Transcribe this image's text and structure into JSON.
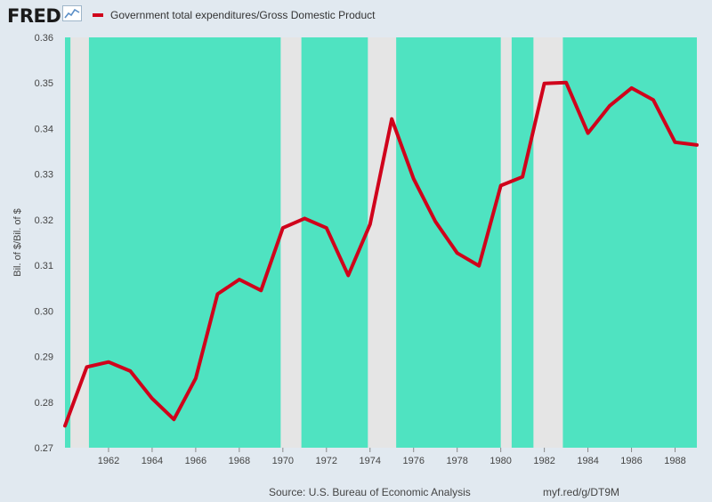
{
  "header": {
    "logo_text": "FRED",
    "logo_icon": "chart-line-icon"
  },
  "legend": {
    "label": "Government total expenditures/Gross Domestic Product",
    "color": "#d0021b"
  },
  "footer": {
    "source": "Source: U.S. Bureau of Economic Analysis",
    "link": "myf.red/g/DT9M"
  },
  "colors": {
    "plot_fill": "#4fe3c1",
    "recession_shading": "#e5e5e5",
    "line": "#d0021b",
    "background": "#e1e9f0"
  },
  "chart_data": {
    "type": "line",
    "title": "",
    "xlabel": "",
    "ylabel": "Bil. of $/Bil. of $",
    "xlim": [
      1960,
      1989
    ],
    "ylim": [
      0.27,
      0.36
    ],
    "x_ticks": [
      1962,
      1964,
      1966,
      1968,
      1970,
      1972,
      1974,
      1976,
      1978,
      1980,
      1982,
      1984,
      1986,
      1988
    ],
    "y_ticks": [
      "0.27",
      "0.28",
      "0.29",
      "0.30",
      "0.31",
      "0.32",
      "0.33",
      "0.34",
      "0.35",
      "0.36"
    ],
    "grid": false,
    "legend_position": "top-left",
    "recessions": [
      [
        1960.25,
        1961.1
      ],
      [
        1969.9,
        1970.85
      ],
      [
        1973.9,
        1975.2
      ],
      [
        1980.0,
        1980.5
      ],
      [
        1981.5,
        1982.85
      ]
    ],
    "series": [
      {
        "name": "Government total expenditures/Gross Domestic Product",
        "x": [
          1960,
          1961,
          1962,
          1963,
          1964,
          1965,
          1966,
          1967,
          1968,
          1969,
          1970,
          1971,
          1972,
          1973,
          1974,
          1975,
          1976,
          1977,
          1978,
          1979,
          1980,
          1981,
          1982,
          1983,
          1984,
          1985,
          1986,
          1987,
          1988,
          1989
        ],
        "y": [
          0.2748,
          0.2877,
          0.2888,
          0.2868,
          0.2808,
          0.2762,
          0.2852,
          0.3037,
          0.3069,
          0.3045,
          0.3182,
          0.3203,
          0.3182,
          0.3078,
          0.319,
          0.3421,
          0.329,
          0.3196,
          0.3127,
          0.3099,
          0.3275,
          0.3294,
          0.3499,
          0.3501,
          0.339,
          0.345,
          0.3489,
          0.3463,
          0.337,
          0.3364
        ]
      }
    ]
  }
}
